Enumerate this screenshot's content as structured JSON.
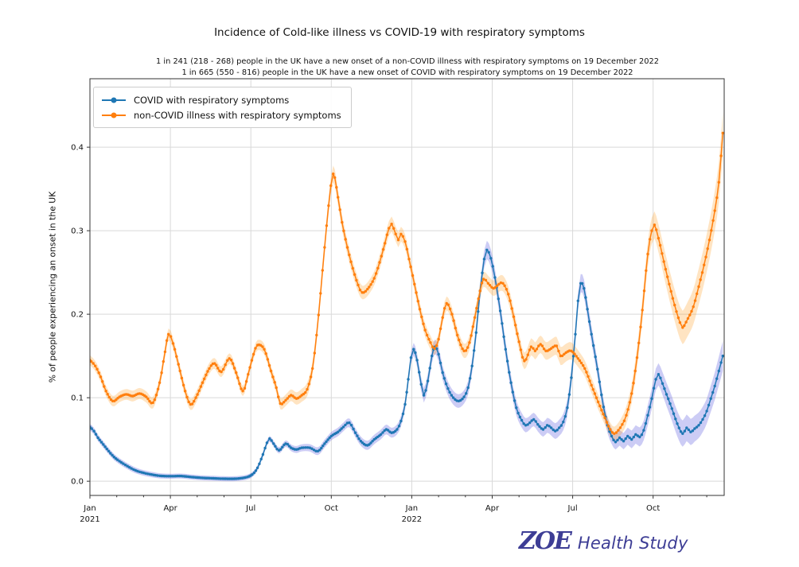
{
  "logo": {
    "brand": "ZOE",
    "text": "Health Study",
    "color": "#3d3d95"
  },
  "chart_data": {
    "type": "line",
    "title": "Incidence of Cold-like illness vs COVID-19 with respiratory symptoms",
    "subtitle1": "1 in 241 (218 - 268) people in the UK have a new onset of a non-COVID illness with respiratory symptoms on 19 December 2022",
    "subtitle2": "1 in 665 (550 - 816) people in the UK have a new onset of COVID with respiratory symptoms on 19 December 2022",
    "ylabel": "% of people experiencing an onset in the UK",
    "xlabel": "",
    "x_unit": "months since 1 Jan 2021",
    "xlim": [
      0,
      23.65
    ],
    "ylim": [
      -0.017,
      0.482
    ],
    "grid": true,
    "grid_color": "#d9d9d9",
    "axis_color": "#333333",
    "legend_position": "upper left",
    "x_major_ticks": [
      {
        "m": 0,
        "label": "Jan",
        "year": "2021"
      },
      {
        "m": 3,
        "label": "Apr"
      },
      {
        "m": 6,
        "label": "Jul"
      },
      {
        "m": 9,
        "label": "Oct"
      },
      {
        "m": 12,
        "label": "Jan",
        "year": "2022"
      },
      {
        "m": 15,
        "label": "Apr"
      },
      {
        "m": 18,
        "label": "Jul"
      },
      {
        "m": 21,
        "label": "Oct"
      }
    ],
    "x_minor_step": 1,
    "y_ticks": [
      {
        "v": 0.0,
        "label": "0.0"
      },
      {
        "v": 0.1,
        "label": "0.1"
      },
      {
        "v": 0.2,
        "label": "0.2"
      },
      {
        "v": 0.3,
        "label": "0.3"
      },
      {
        "v": 0.4,
        "label": "0.4"
      }
    ],
    "series": [
      {
        "name": "COVID with respiratory symptoms",
        "color": "#1f77b4",
        "band_color": "rgba(110,110,225,0.35)",
        "points": [
          [
            0,
            0.065
          ],
          [
            0.15,
            0.06
          ],
          [
            0.3,
            0.052
          ],
          [
            0.5,
            0.044
          ],
          [
            0.7,
            0.036
          ],
          [
            0.9,
            0.029
          ],
          [
            1.1,
            0.024
          ],
          [
            1.4,
            0.018
          ],
          [
            1.7,
            0.013
          ],
          [
            2.0,
            0.01
          ],
          [
            2.3,
            0.008
          ],
          [
            2.6,
            0.0065
          ],
          [
            3.0,
            0.006
          ],
          [
            3.4,
            0.0062
          ],
          [
            3.8,
            0.005
          ],
          [
            4.2,
            0.004
          ],
          [
            4.6,
            0.0035
          ],
          [
            5.0,
            0.003
          ],
          [
            5.4,
            0.003
          ],
          [
            5.8,
            0.0045
          ],
          [
            6.05,
            0.008
          ],
          [
            6.25,
            0.016
          ],
          [
            6.45,
            0.032
          ],
          [
            6.6,
            0.046
          ],
          [
            6.7,
            0.051
          ],
          [
            6.85,
            0.045
          ],
          [
            7.05,
            0.037
          ],
          [
            7.3,
            0.045
          ],
          [
            7.5,
            0.04
          ],
          [
            7.7,
            0.038
          ],
          [
            7.9,
            0.04
          ],
          [
            8.2,
            0.04
          ],
          [
            8.5,
            0.036
          ],
          [
            8.75,
            0.045
          ],
          [
            9.0,
            0.054
          ],
          [
            9.25,
            0.059
          ],
          [
            9.45,
            0.065
          ],
          [
            9.67,
            0.07
          ],
          [
            9.9,
            0.058
          ],
          [
            10.1,
            0.048
          ],
          [
            10.35,
            0.043
          ],
          [
            10.6,
            0.05
          ],
          [
            10.85,
            0.056
          ],
          [
            11.05,
            0.062
          ],
          [
            11.25,
            0.058
          ],
          [
            11.45,
            0.062
          ],
          [
            11.6,
            0.072
          ],
          [
            11.75,
            0.092
          ],
          [
            11.87,
            0.122
          ],
          [
            11.97,
            0.148
          ],
          [
            12.07,
            0.158
          ],
          [
            12.2,
            0.145
          ],
          [
            12.35,
            0.116
          ],
          [
            12.45,
            0.103
          ],
          [
            12.6,
            0.12
          ],
          [
            12.75,
            0.15
          ],
          [
            12.87,
            0.161
          ],
          [
            13.0,
            0.152
          ],
          [
            13.15,
            0.13
          ],
          [
            13.35,
            0.111
          ],
          [
            13.55,
            0.1
          ],
          [
            13.75,
            0.096
          ],
          [
            13.95,
            0.101
          ],
          [
            14.1,
            0.112
          ],
          [
            14.25,
            0.138
          ],
          [
            14.4,
            0.178
          ],
          [
            14.55,
            0.228
          ],
          [
            14.7,
            0.266
          ],
          [
            14.8,
            0.277
          ],
          [
            14.95,
            0.267
          ],
          [
            15.1,
            0.244
          ],
          [
            15.3,
            0.204
          ],
          [
            15.5,
            0.158
          ],
          [
            15.7,
            0.118
          ],
          [
            15.9,
            0.088
          ],
          [
            16.1,
            0.073
          ],
          [
            16.25,
            0.067
          ],
          [
            16.4,
            0.07
          ],
          [
            16.55,
            0.074
          ],
          [
            16.7,
            0.068
          ],
          [
            16.9,
            0.062
          ],
          [
            17.05,
            0.067
          ],
          [
            17.2,
            0.064
          ],
          [
            17.35,
            0.06
          ],
          [
            17.5,
            0.064
          ],
          [
            17.65,
            0.071
          ],
          [
            17.8,
            0.088
          ],
          [
            17.95,
            0.124
          ],
          [
            18.1,
            0.176
          ],
          [
            18.2,
            0.216
          ],
          [
            18.3,
            0.237
          ],
          [
            18.42,
            0.231
          ],
          [
            18.55,
            0.206
          ],
          [
            18.7,
            0.176
          ],
          [
            18.85,
            0.149
          ],
          [
            19.0,
            0.119
          ],
          [
            19.15,
            0.089
          ],
          [
            19.3,
            0.067
          ],
          [
            19.45,
            0.054
          ],
          [
            19.6,
            0.047
          ],
          [
            19.75,
            0.052
          ],
          [
            19.9,
            0.048
          ],
          [
            20.05,
            0.054
          ],
          [
            20.2,
            0.05
          ],
          [
            20.35,
            0.056
          ],
          [
            20.5,
            0.053
          ],
          [
            20.65,
            0.061
          ],
          [
            20.8,
            0.079
          ],
          [
            20.95,
            0.099
          ],
          [
            21.1,
            0.122
          ],
          [
            21.2,
            0.128
          ],
          [
            21.35,
            0.117
          ],
          [
            21.5,
            0.104
          ],
          [
            21.7,
            0.087
          ],
          [
            21.9,
            0.069
          ],
          [
            22.1,
            0.057
          ],
          [
            22.25,
            0.064
          ],
          [
            22.4,
            0.059
          ],
          [
            22.55,
            0.063
          ],
          [
            22.7,
            0.067
          ],
          [
            22.85,
            0.074
          ],
          [
            23.0,
            0.084
          ],
          [
            23.15,
            0.099
          ],
          [
            23.3,
            0.114
          ],
          [
            23.45,
            0.132
          ],
          [
            23.6,
            0.15
          ]
        ],
        "band_halfwidth": [
          [
            0,
            0.004
          ],
          [
            3,
            0.003
          ],
          [
            6,
            0.003
          ],
          [
            9,
            0.005
          ],
          [
            11.5,
            0.006
          ],
          [
            12.5,
            0.009
          ],
          [
            14,
            0.008
          ],
          [
            14.8,
            0.011
          ],
          [
            16.5,
            0.008
          ],
          [
            18.3,
            0.011
          ],
          [
            19.6,
            0.009
          ],
          [
            21.1,
            0.013
          ],
          [
            22.2,
            0.016
          ],
          [
            23.0,
            0.015
          ],
          [
            23.6,
            0.018
          ]
        ]
      },
      {
        "name": "non-COVID illness with respiratory symptoms",
        "color": "#ff7f0e",
        "band_color": "rgba(255,158,35,0.28)",
        "points": [
          [
            0,
            0.145
          ],
          [
            0.2,
            0.138
          ],
          [
            0.4,
            0.125
          ],
          [
            0.6,
            0.108
          ],
          [
            0.85,
            0.096
          ],
          [
            1.1,
            0.101
          ],
          [
            1.35,
            0.104
          ],
          [
            1.6,
            0.102
          ],
          [
            1.85,
            0.105
          ],
          [
            2.1,
            0.101
          ],
          [
            2.35,
            0.094
          ],
          [
            2.6,
            0.118
          ],
          [
            2.8,
            0.155
          ],
          [
            2.93,
            0.176
          ],
          [
            3.1,
            0.165
          ],
          [
            3.3,
            0.14
          ],
          [
            3.55,
            0.108
          ],
          [
            3.75,
            0.092
          ],
          [
            3.95,
            0.1
          ],
          [
            4.2,
            0.118
          ],
          [
            4.45,
            0.135
          ],
          [
            4.65,
            0.141
          ],
          [
            4.9,
            0.131
          ],
          [
            5.2,
            0.147
          ],
          [
            5.45,
            0.13
          ],
          [
            5.7,
            0.108
          ],
          [
            5.9,
            0.128
          ],
          [
            6.1,
            0.152
          ],
          [
            6.25,
            0.163
          ],
          [
            6.5,
            0.158
          ],
          [
            6.75,
            0.132
          ],
          [
            6.95,
            0.112
          ],
          [
            7.1,
            0.093
          ],
          [
            7.3,
            0.097
          ],
          [
            7.5,
            0.103
          ],
          [
            7.7,
            0.099
          ],
          [
            7.9,
            0.103
          ],
          [
            8.1,
            0.11
          ],
          [
            8.3,
            0.135
          ],
          [
            8.45,
            0.175
          ],
          [
            8.6,
            0.225
          ],
          [
            8.75,
            0.28
          ],
          [
            8.9,
            0.33
          ],
          [
            9.07,
            0.368
          ],
          [
            9.25,
            0.34
          ],
          [
            9.4,
            0.31
          ],
          [
            9.6,
            0.28
          ],
          [
            9.8,
            0.255
          ],
          [
            10.0,
            0.235
          ],
          [
            10.15,
            0.226
          ],
          [
            10.35,
            0.23
          ],
          [
            10.6,
            0.243
          ],
          [
            10.8,
            0.262
          ],
          [
            11.0,
            0.285
          ],
          [
            11.15,
            0.303
          ],
          [
            11.25,
            0.308
          ],
          [
            11.4,
            0.296
          ],
          [
            11.5,
            0.289
          ],
          [
            11.6,
            0.296
          ],
          [
            11.75,
            0.287
          ],
          [
            11.9,
            0.266
          ],
          [
            12.1,
            0.236
          ],
          [
            12.3,
            0.206
          ],
          [
            12.5,
            0.181
          ],
          [
            12.7,
            0.166
          ],
          [
            12.85,
            0.159
          ],
          [
            13.0,
            0.17
          ],
          [
            13.15,
            0.196
          ],
          [
            13.3,
            0.213
          ],
          [
            13.5,
            0.2
          ],
          [
            13.7,
            0.175
          ],
          [
            13.95,
            0.156
          ],
          [
            14.15,
            0.166
          ],
          [
            14.35,
            0.196
          ],
          [
            14.55,
            0.228
          ],
          [
            14.68,
            0.242
          ],
          [
            14.85,
            0.237
          ],
          [
            15.05,
            0.231
          ],
          [
            15.25,
            0.236
          ],
          [
            15.4,
            0.237
          ],
          [
            15.6,
            0.224
          ],
          [
            15.8,
            0.197
          ],
          [
            16.0,
            0.167
          ],
          [
            16.2,
            0.144
          ],
          [
            16.45,
            0.161
          ],
          [
            16.6,
            0.156
          ],
          [
            16.8,
            0.164
          ],
          [
            17.0,
            0.156
          ],
          [
            17.2,
            0.159
          ],
          [
            17.4,
            0.162
          ],
          [
            17.55,
            0.15
          ],
          [
            17.75,
            0.154
          ],
          [
            17.95,
            0.156
          ],
          [
            18.2,
            0.147
          ],
          [
            18.45,
            0.135
          ],
          [
            18.7,
            0.115
          ],
          [
            18.95,
            0.095
          ],
          [
            19.2,
            0.076
          ],
          [
            19.4,
            0.062
          ],
          [
            19.55,
            0.057
          ],
          [
            19.7,
            0.061
          ],
          [
            19.85,
            0.068
          ],
          [
            20.0,
            0.079
          ],
          [
            20.2,
            0.105
          ],
          [
            20.4,
            0.148
          ],
          [
            20.6,
            0.205
          ],
          [
            20.8,
            0.272
          ],
          [
            20.95,
            0.3
          ],
          [
            21.05,
            0.307
          ],
          [
            21.2,
            0.291
          ],
          [
            21.4,
            0.263
          ],
          [
            21.6,
            0.236
          ],
          [
            21.8,
            0.211
          ],
          [
            22.0,
            0.19
          ],
          [
            22.1,
            0.184
          ],
          [
            22.3,
            0.195
          ],
          [
            22.5,
            0.209
          ],
          [
            22.7,
            0.233
          ],
          [
            22.9,
            0.259
          ],
          [
            23.1,
            0.289
          ],
          [
            23.3,
            0.324
          ],
          [
            23.45,
            0.358
          ],
          [
            23.6,
            0.417
          ]
        ],
        "band_halfwidth": [
          [
            0,
            0.006
          ],
          [
            3,
            0.007
          ],
          [
            6,
            0.006
          ],
          [
            7.5,
            0.007
          ],
          [
            9.07,
            0.01
          ],
          [
            10.2,
            0.008
          ],
          [
            11.3,
            0.009
          ],
          [
            12.9,
            0.008
          ],
          [
            14.7,
            0.009
          ],
          [
            16.3,
            0.01
          ],
          [
            17.5,
            0.011
          ],
          [
            19.5,
            0.008
          ],
          [
            21,
            0.016
          ],
          [
            22.1,
            0.02
          ],
          [
            22.8,
            0.022
          ],
          [
            23.6,
            0.025
          ]
        ]
      }
    ]
  }
}
